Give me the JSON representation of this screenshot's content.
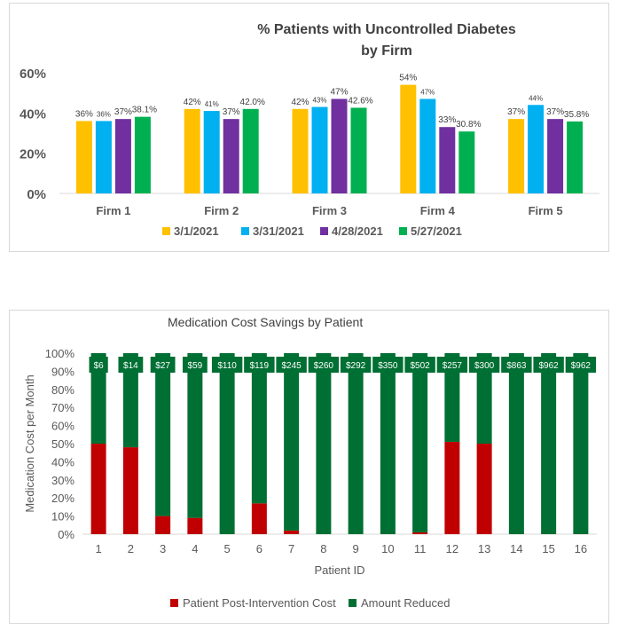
{
  "chart_data": [
    {
      "type": "bar",
      "title": "% Patients with Uncontrolled Diabetes by Firm",
      "title_lines": [
        "% Patients with Uncontrolled Diabetes",
        "by Firm"
      ],
      "categories": [
        "Firm 1",
        "Firm 2",
        "Firm 3",
        "Firm 4",
        "Firm 5"
      ],
      "series": [
        {
          "name": "3/1/2021",
          "color": "#FFC000",
          "values": [
            36,
            42,
            42,
            54,
            37
          ],
          "labels": [
            "36%",
            "42%",
            "42%",
            "54%",
            "37%"
          ]
        },
        {
          "name": "3/31/2021",
          "color": "#00B0F0",
          "values": [
            36,
            41,
            43,
            47,
            44
          ],
          "labels": [
            "36%",
            "41%",
            "43%",
            "47%",
            "44%"
          ]
        },
        {
          "name": "4/28/2021",
          "color": "#7030A0",
          "values": [
            37,
            37,
            47,
            33,
            37
          ],
          "labels": [
            "37%",
            "37%",
            "47%",
            "33%",
            "37%"
          ]
        },
        {
          "name": "5/27/2021",
          "color": "#00B050",
          "values": [
            38.1,
            42.0,
            42.6,
            30.8,
            35.8
          ],
          "labels": [
            "38.1%",
            "42.0%",
            "42.6%",
            "30.8%",
            "35.8%"
          ]
        }
      ],
      "ylim": [
        0,
        60
      ],
      "yticks": [
        0,
        20,
        40,
        60
      ],
      "ytick_labels": [
        "0%",
        "20%",
        "40%",
        "60%"
      ],
      "xlabel": "",
      "ylabel": "",
      "legend_position": "bottom"
    },
    {
      "type": "bar",
      "stacked": true,
      "title": "Medication Cost Savings by Patient",
      "categories": [
        "1",
        "2",
        "3",
        "4",
        "5",
        "6",
        "7",
        "8",
        "9",
        "10",
        "11",
        "12",
        "13",
        "14",
        "15",
        "16"
      ],
      "series": [
        {
          "name": "Patient Post-Intervention Cost",
          "color": "#C00000",
          "values": [
            50,
            48,
            10,
            9,
            0,
            17,
            2,
            0,
            0,
            0,
            1,
            51,
            50,
            0,
            0,
            0
          ]
        },
        {
          "name": "Amount Reduced",
          "color": "#006F33",
          "values": [
            50,
            52,
            90,
            91,
            100,
            83,
            98,
            100,
            100,
            100,
            99,
            49,
            50,
            100,
            100,
            100
          ]
        }
      ],
      "top_labels": [
        "$6",
        "$14",
        "$27",
        "$59",
        "$110",
        "$119",
        "$245",
        "$260",
        "$292",
        "$350",
        "$502",
        "$257",
        "$300",
        "$863",
        "$962",
        "$962"
      ],
      "ylim": [
        0,
        100
      ],
      "yticks": [
        0,
        10,
        20,
        30,
        40,
        50,
        60,
        70,
        80,
        90,
        100
      ],
      "ytick_labels": [
        "0%",
        "10%",
        "20%",
        "30%",
        "40%",
        "50%",
        "60%",
        "70%",
        "80%",
        "90%",
        "100%"
      ],
      "xlabel": "Patient ID",
      "ylabel": "Medication Cost per Month",
      "legend_position": "bottom"
    }
  ]
}
